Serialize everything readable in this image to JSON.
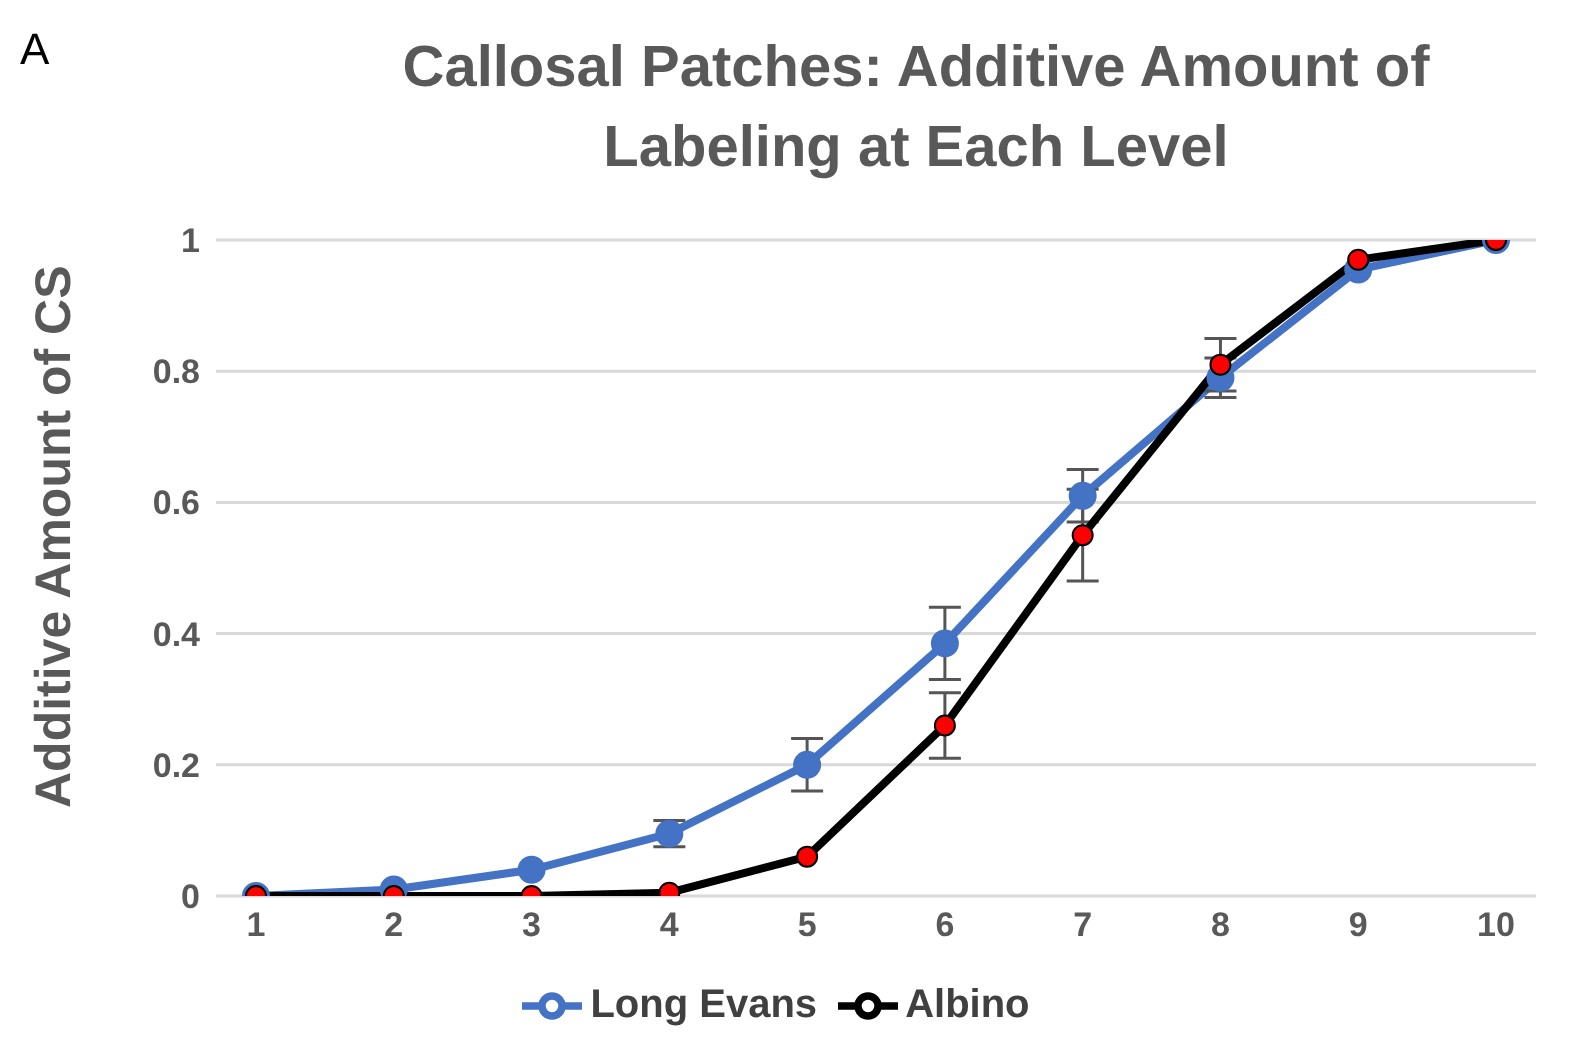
{
  "chart_data": {
    "type": "line",
    "title": "Callosal Patches: Additive Amount of Labeling at Each Level",
    "ylabel": "Additive Amount of CS",
    "annotations": [
      "A"
    ],
    "categories": [
      "1",
      "2",
      "3",
      "4",
      "5",
      "6",
      "7",
      "8",
      "9",
      "10"
    ],
    "series": [
      {
        "name": "Long Evans",
        "color": "#4472c4",
        "values": [
          0,
          0.01,
          0.04,
          0.095,
          0.2,
          0.385,
          0.61,
          0.79,
          0.955,
          1
        ],
        "errors": [
          null,
          null,
          null,
          0.02,
          0.04,
          0.055,
          0.04,
          0.03,
          null,
          null
        ]
      },
      {
        "name": "Albino",
        "color": "#000000",
        "colors": [
          "#ff0000",
          "#ff0000",
          "#ff0000",
          "#ff0000",
          "#ff0000",
          "#ff0000",
          "#ff0000",
          "#ff0000",
          "#ff0000",
          "#ff0000"
        ],
        "values": [
          0,
          0,
          0,
          0.005,
          0.06,
          0.26,
          0.55,
          0.81,
          0.97,
          1
        ],
        "errors": [
          null,
          null,
          null,
          null,
          null,
          0.05,
          0.07,
          0.04,
          null,
          null
        ]
      }
    ],
    "ylim": [
      0,
      1
    ],
    "yticks": [
      0,
      0.2,
      0.4,
      0.6,
      0.8,
      1
    ],
    "grid": "y",
    "legend": "bottom",
    "marker": "circle",
    "line_style": "solid"
  }
}
